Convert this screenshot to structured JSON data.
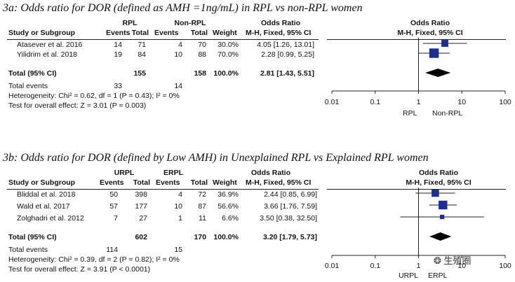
{
  "chart_data": [
    {
      "type": "forest",
      "title": "3a: Odds ratio for DOR (defined as AMH =1ng/mL) in RPL vs non-RPL women",
      "group1": "RPL",
      "group2": "Non-RPL",
      "headers": {
        "study": "Study or Subgroup",
        "events": "Events",
        "total": "Total",
        "weight": "Weight",
        "or_title": "Odds Ratio",
        "or_method": "M-H, Fixed, 95% CI"
      },
      "studies": [
        {
          "name": "Atasever et al. 2016",
          "e1": 14,
          "t1": 71,
          "e2": 4,
          "t2": 70,
          "weight": "30.0%",
          "ci_text": "4.05 [1.26, 13.01]",
          "or": 4.05,
          "lo": 1.26,
          "hi": 13.01,
          "w": 30.0
        },
        {
          "name": "Yilidrim et al. 2018",
          "e1": 19,
          "t1": 84,
          "e2": 10,
          "t2": 88,
          "weight": "70.0%",
          "ci_text": "2.28 [0.99, 5.25]",
          "or": 2.28,
          "lo": 0.99,
          "hi": 5.25,
          "w": 70.0
        }
      ],
      "total": {
        "label": "Total (95% CI)",
        "t1": 155,
        "t2": 158,
        "weight": "100.0%",
        "ci_text": "2.81 [1.43, 5.51]",
        "or": 2.81,
        "lo": 1.43,
        "hi": 5.51
      },
      "events_label": "Total events",
      "events1": 33,
      "events2": 14,
      "heterogeneity": "Heterogeneity: Chi² = 0.62, df = 1 (P = 0.43); I² = 0%",
      "overall_effect": "Test for overall effect: Z = 3.01 (P = 0.003)",
      "axis": {
        "type": "log",
        "ticks": [
          0.01,
          0.1,
          1,
          10,
          100
        ],
        "tick_labels": [
          "0.01",
          "0.1",
          "1",
          "10",
          "100"
        ],
        "range": [
          0.01,
          100
        ]
      },
      "favours_left": "RPL",
      "favours_right": "Non-RPL"
    },
    {
      "type": "forest",
      "title": "3b: Odds ratio for DOR (defined by Low AMH) in Unexplained RPL vs Explained RPL women",
      "group1": "URPL",
      "group2": "ERPL",
      "headers": {
        "study": "Study or Subgroup",
        "events": "Events",
        "total": "Total",
        "weight": "Weight",
        "or_title": "Odds Ratio",
        "or_method": "M-H, Fixed, 95% CI"
      },
      "studies": [
        {
          "name": "Bliddal et al. 2018",
          "e1": 50,
          "t1": 398,
          "e2": 4,
          "t2": 72,
          "weight": "36.9%",
          "ci_text": "2.44 [0.85, 6.99]",
          "or": 2.44,
          "lo": 0.85,
          "hi": 6.99,
          "w": 36.9
        },
        {
          "name": "Wald et al. 2017",
          "e1": 57,
          "t1": 177,
          "e2": 10,
          "t2": 87,
          "weight": "56.6%",
          "ci_text": "3.66 [1.76, 7.59]",
          "or": 3.66,
          "lo": 1.76,
          "hi": 7.59,
          "w": 56.6
        },
        {
          "name": "Zolghadri et al. 2012",
          "e1": 7,
          "t1": 27,
          "e2": 1,
          "t2": 11,
          "weight": "6.6%",
          "ci_text": "3.50 [0.38, 32.50]",
          "or": 3.5,
          "lo": 0.38,
          "hi": 32.5,
          "w": 6.6
        }
      ],
      "total": {
        "label": "Total (95% CI)",
        "t1": 602,
        "t2": 170,
        "weight": "100.0%",
        "ci_text": "3.20 [1.79, 5.73]",
        "or": 3.2,
        "lo": 1.79,
        "hi": 5.73
      },
      "events_label": "Total events",
      "events1": 114,
      "events2": 15,
      "heterogeneity": "Heterogeneity: Chi² = 0.39, df = 2 (P = 0.82); I² = 0%",
      "overall_effect": "Test for overall effect: Z = 3.91 (P < 0.0001)",
      "axis": {
        "type": "log",
        "ticks": [
          0.01,
          0.1,
          1,
          10,
          100
        ],
        "tick_labels": [
          "0.01",
          "0.1",
          "1",
          "10",
          "100"
        ],
        "range": [
          0.01,
          100
        ]
      },
      "favours_left": "URPL",
      "favours_right": "ERPL"
    }
  ],
  "watermark": "生殖圈",
  "colors": {
    "marker": "#1f2f8f",
    "diamond": "#000000",
    "line": "#222222"
  }
}
